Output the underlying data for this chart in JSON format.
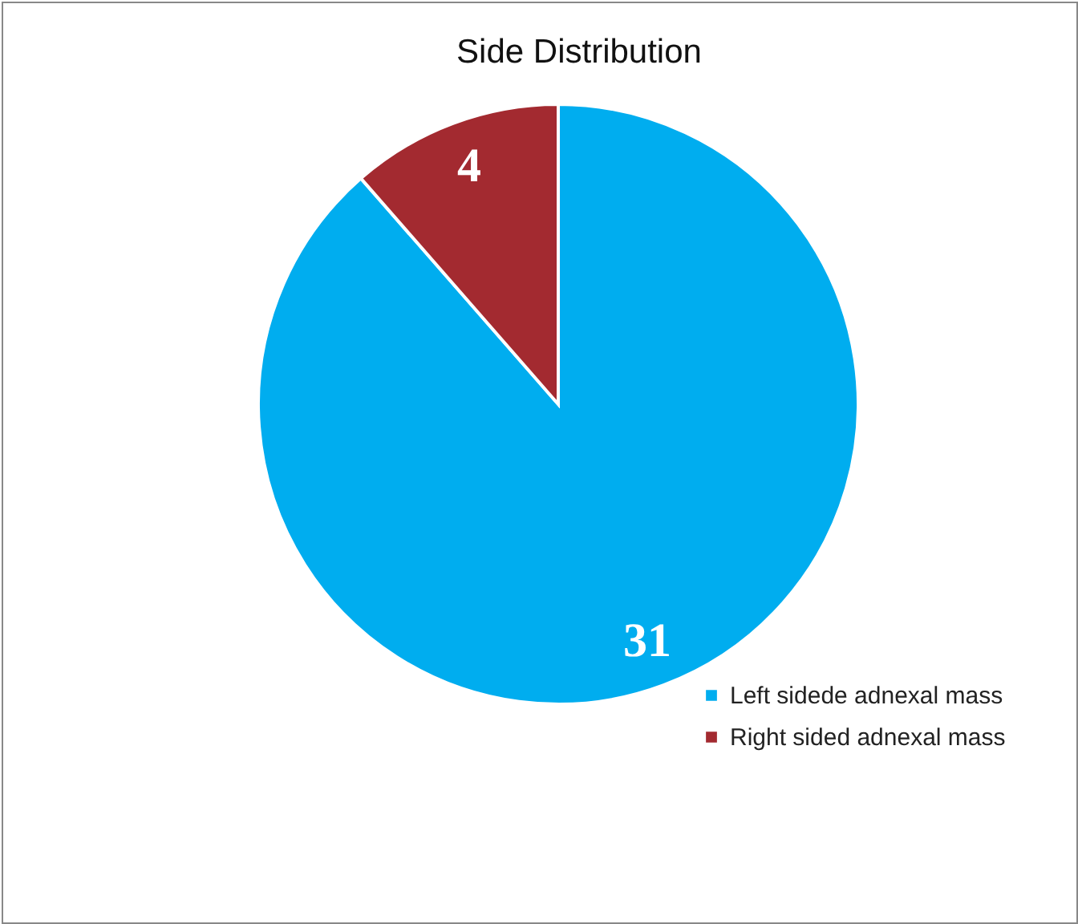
{
  "chart_data": {
    "type": "pie",
    "title": "Side Distribution",
    "categories": [
      "Left sidede adnexal mass",
      "Right sided adnexal mass"
    ],
    "values": [
      31,
      4
    ],
    "colors": [
      "#00adef",
      "#a32a30"
    ],
    "data_labels": true,
    "legend": "bottom right"
  }
}
